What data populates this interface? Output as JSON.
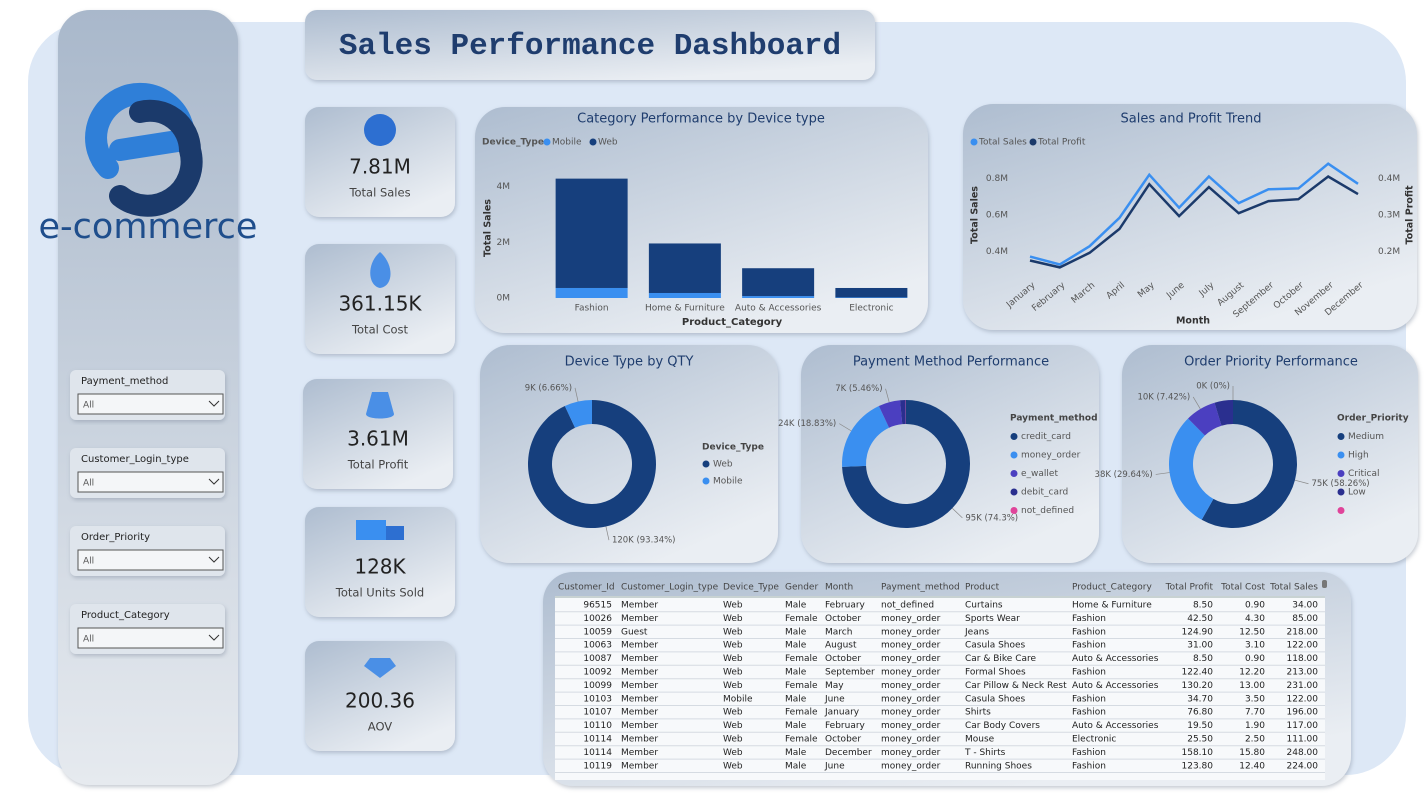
{
  "header": {
    "title": "Sales Performance Dashboard"
  },
  "logo": {
    "text": "e-commerce"
  },
  "slicers": [
    {
      "label": "Payment_method",
      "value": "All"
    },
    {
      "label": "Customer_Login_type",
      "value": "All"
    },
    {
      "label": "Order_Priority",
      "value": "All"
    },
    {
      "label": "Product_Category",
      "value": "All"
    }
  ],
  "kpis": [
    {
      "value": "7.81M",
      "label": "Total Sales"
    },
    {
      "value": "361.15K",
      "label": "Total Cost"
    },
    {
      "value": "3.61M",
      "label": "Total Profit"
    },
    {
      "value": "128K",
      "label": "Total Units Sold"
    },
    {
      "value": "200.36",
      "label": "AOV"
    }
  ],
  "chart_data": [
    {
      "type": "bar",
      "stacked": true,
      "title": "Category Performance by Device type",
      "legend_title": "Device_Type",
      "categories": [
        "Fashion",
        "Home & Furniture",
        "Auto & Accessories",
        "Electronic"
      ],
      "series": [
        {
          "name": "Mobile",
          "color": "#3a8ff0",
          "values": [
            360000,
            180000,
            70000,
            20000
          ]
        },
        {
          "name": "Web",
          "color": "#163f7d",
          "values": [
            3930000,
            1780000,
            1000000,
            340000
          ]
        }
      ],
      "ylim": [
        0,
        4600000
      ],
      "yticks": [
        {
          "value": 0,
          "label": "0M"
        },
        {
          "value": 2000000,
          "label": "2M"
        },
        {
          "value": 4000000,
          "label": "4M"
        }
      ],
      "ylabel": "Total Sales",
      "xlabel": "Product_Category"
    },
    {
      "type": "line",
      "title": "Sales and Profit Trend",
      "categories": [
        "January",
        "February",
        "March",
        "April",
        "May",
        "June",
        "July",
        "August",
        "September",
        "October",
        "November",
        "December"
      ],
      "series": [
        {
          "name": "Total Sales",
          "color": "#3a8ff0",
          "values": [
            373000,
            330000,
            430000,
            585000,
            820000,
            640000,
            810000,
            665000,
            740000,
            745000,
            880000,
            770000
          ]
        },
        {
          "name": "Total Profit",
          "color": "#1b3a6b",
          "axis": "y2",
          "values": [
            176000,
            157000,
            197000,
            262000,
            384000,
            297000,
            376000,
            305000,
            338000,
            343000,
            405000,
            357000
          ]
        }
      ],
      "ylim": [
        300000,
        900000
      ],
      "yticks": [
        {
          "value": 400000,
          "label": "0.4M"
        },
        {
          "value": 600000,
          "label": "0.6M"
        },
        {
          "value": 800000,
          "label": "0.8M"
        }
      ],
      "y2lim": [
        150000,
        450000
      ],
      "y2ticks": [
        {
          "value": 200000,
          "label": "0.2M"
        },
        {
          "value": 300000,
          "label": "0.3M"
        },
        {
          "value": 400000,
          "label": "0.4M"
        }
      ],
      "ylabel": "Total Sales",
      "y2label": "Total Profit",
      "xlabel": "Month"
    },
    {
      "type": "donut",
      "title": "Device Type by QTY",
      "legend_title": "Device_Type",
      "categories": [
        "Web",
        "Mobile"
      ],
      "values": [
        120000,
        9000
      ],
      "value_labels": [
        "120K (93.34%)",
        "9K (6.66%)"
      ],
      "colors": [
        "#163f7d",
        "#3a8ff0"
      ]
    },
    {
      "type": "donut",
      "title": "Payment Method Performance",
      "legend_title": "Payment_method",
      "categories": [
        "credit_card",
        "money_order",
        "e_wallet",
        "debit_card",
        "not_defined"
      ],
      "values": [
        95000,
        24000,
        7000,
        1800,
        100
      ],
      "value_labels": [
        "95K (74.3%)",
        "24K (18.83%)",
        "7K (5.46%)",
        null,
        null
      ],
      "colors": [
        "#163f7d",
        "#3a8ff0",
        "#4b3fc0",
        "#2a2f8f",
        "#e0449a"
      ]
    },
    {
      "type": "donut",
      "title": "Order Priority Performance",
      "legend_title": "Order_Priority",
      "categories": [
        "Medium",
        "High",
        "Critical",
        "Low",
        null
      ],
      "values": [
        75000,
        38000,
        10000,
        6000,
        0
      ],
      "value_labels": [
        "75K (58.26%)",
        "38K (29.64%)",
        "10K (7.42%)",
        null,
        "0K (0%)"
      ],
      "colors": [
        "#163f7d",
        "#3a8ff0",
        "#4b3fc0",
        "#2a2f8f",
        "#e0449a"
      ]
    }
  ],
  "table": {
    "columns": [
      "Customer_Id",
      "Customer_Login_type",
      "Device_Type",
      "Gender",
      "Month",
      "Payment_method",
      "Product",
      "Product_Category",
      "Total Profit",
      "Total Cost",
      "Total Sales"
    ],
    "rows": [
      [
        "96515",
        "Member",
        "Web",
        "Male",
        "February",
        "not_defined",
        "Curtains",
        "Home & Furniture",
        "8.50",
        "0.90",
        "34.00"
      ],
      [
        "10026",
        "Member",
        "Web",
        "Female",
        "October",
        "money_order",
        "Sports Wear",
        "Fashion",
        "42.50",
        "4.30",
        "85.00"
      ],
      [
        "10059",
        "Guest",
        "Web",
        "Male",
        "March",
        "money_order",
        "Jeans",
        "Fashion",
        "124.90",
        "12.50",
        "218.00"
      ],
      [
        "10063",
        "Member",
        "Web",
        "Male",
        "August",
        "money_order",
        "Casula Shoes",
        "Fashion",
        "31.00",
        "3.10",
        "122.00"
      ],
      [
        "10087",
        "Member",
        "Web",
        "Female",
        "October",
        "money_order",
        "Car & Bike Care",
        "Auto & Accessories",
        "8.50",
        "0.90",
        "118.00"
      ],
      [
        "10092",
        "Member",
        "Web",
        "Male",
        "September",
        "money_order",
        "Formal Shoes",
        "Fashion",
        "122.40",
        "12.20",
        "213.00"
      ],
      [
        "10099",
        "Member",
        "Web",
        "Female",
        "May",
        "money_order",
        "Car Pillow & Neck Rest",
        "Auto & Accessories",
        "130.20",
        "13.00",
        "231.00"
      ],
      [
        "10103",
        "Member",
        "Mobile",
        "Male",
        "June",
        "money_order",
        "Casula Shoes",
        "Fashion",
        "34.70",
        "3.50",
        "122.00"
      ],
      [
        "10107",
        "Member",
        "Web",
        "Female",
        "January",
        "money_order",
        "Shirts",
        "Fashion",
        "76.80",
        "7.70",
        "196.00"
      ],
      [
        "10110",
        "Member",
        "Web",
        "Male",
        "February",
        "money_order",
        "Car Body Covers",
        "Auto & Accessories",
        "19.50",
        "1.90",
        "117.00"
      ],
      [
        "10114",
        "Member",
        "Web",
        "Female",
        "October",
        "money_order",
        "Mouse",
        "Electronic",
        "25.50",
        "2.50",
        "111.00"
      ],
      [
        "10114",
        "Member",
        "Web",
        "Male",
        "December",
        "money_order",
        "T - Shirts",
        "Fashion",
        "158.10",
        "15.80",
        "248.00"
      ],
      [
        "10119",
        "Member",
        "Web",
        "Male",
        "June",
        "money_order",
        "Running Shoes",
        "Fashion",
        "123.80",
        "12.40",
        "224.00"
      ]
    ]
  }
}
